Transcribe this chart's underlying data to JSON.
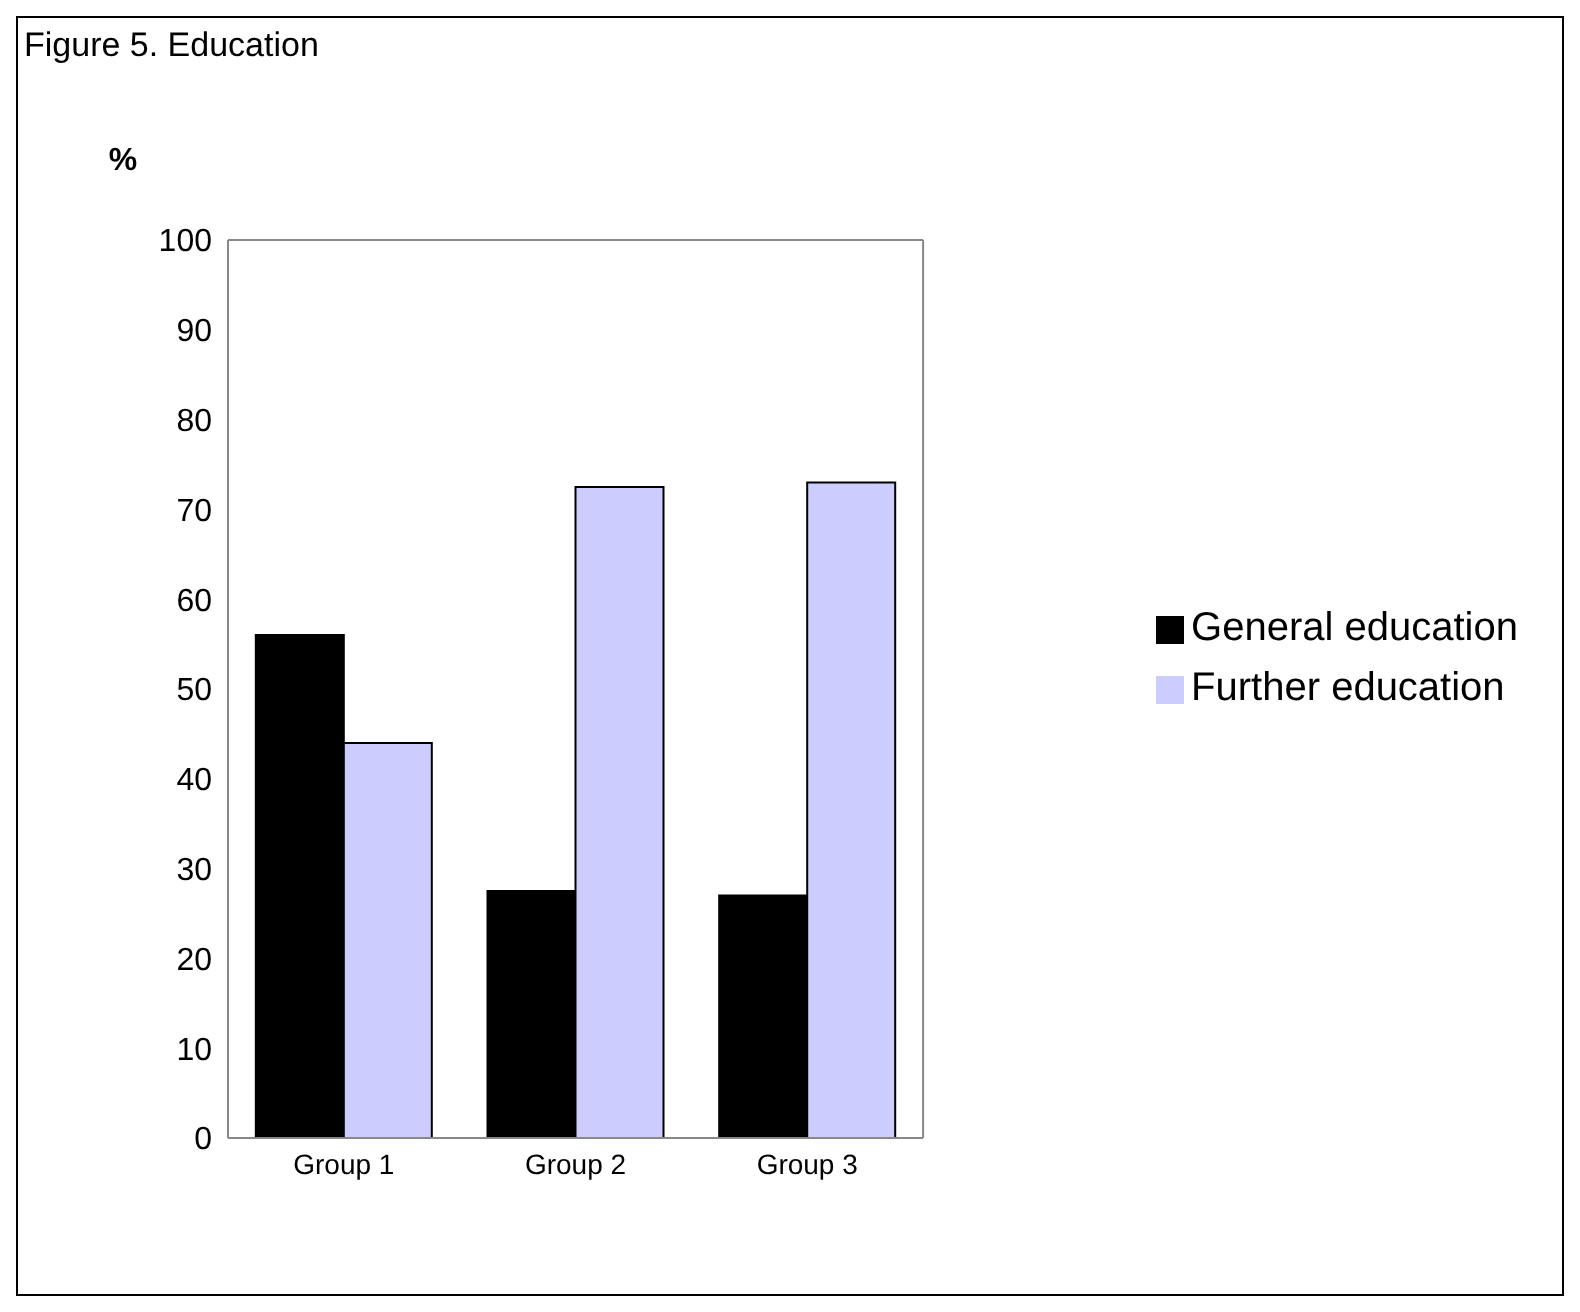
{
  "chart_data": {
    "type": "bar",
    "title": "Figure 5. Education",
    "ylabel": "%",
    "categories": [
      "Group 1",
      "Group 2",
      "Group 3"
    ],
    "series": [
      {
        "name": "General education",
        "color": "#000000",
        "values": [
          56,
          27.5,
          27
        ]
      },
      {
        "name": "Further education",
        "color": "#ccccff",
        "values": [
          44,
          72.5,
          73
        ]
      }
    ],
    "ylim": [
      0,
      100
    ],
    "yticks": [
      0,
      10,
      20,
      30,
      40,
      50,
      60,
      70,
      80,
      90,
      100
    ],
    "grid": false,
    "legend": "right"
  }
}
